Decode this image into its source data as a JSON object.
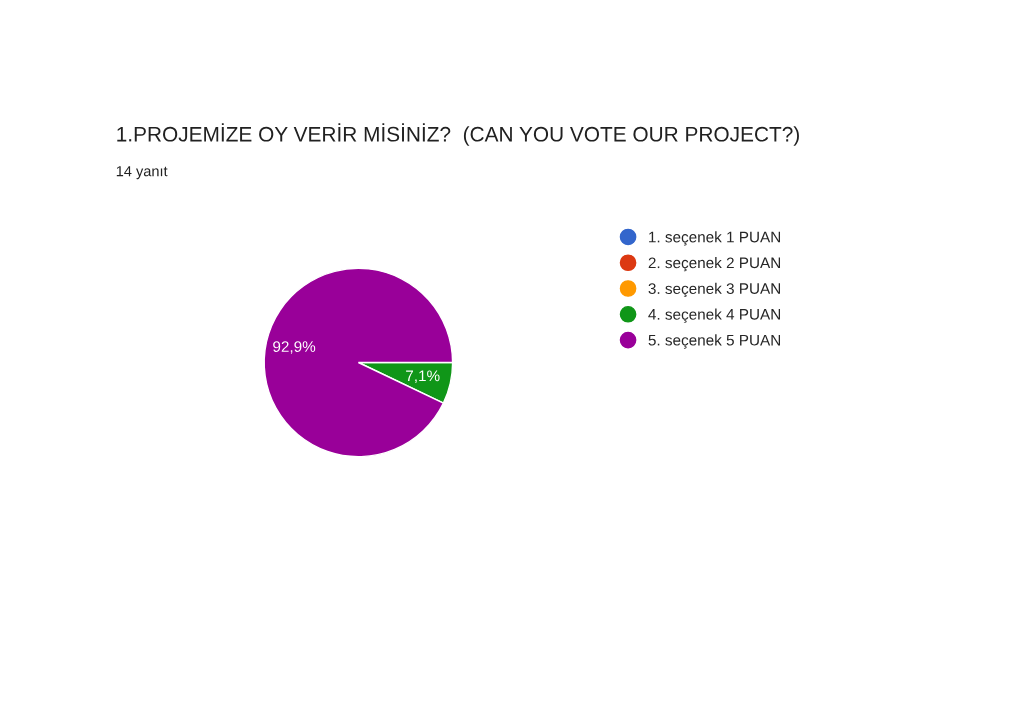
{
  "chart_data": {
    "type": "pie",
    "title": "1.PROJEMİZE OY VERİR MİSİNİZ?  (CAN YOU VOTE OUR PROJECT?)",
    "subtitle": "14 yanıt",
    "categories": [
      "1. seçenek 1 PUAN",
      "2. seçenek 2 PUAN",
      "3. seçenek 3 PUAN",
      "4. seçenek 4 PUAN",
      "5. seçenek 5 PUAN"
    ],
    "values": [
      0,
      0,
      0,
      7.1,
      92.9
    ],
    "value_labels": [
      null,
      null,
      null,
      "7,1%",
      "92,9%"
    ],
    "colors": [
      "#3366cc",
      "#dc3912",
      "#ff9900",
      "#109618",
      "#990099"
    ],
    "legend": "right"
  }
}
